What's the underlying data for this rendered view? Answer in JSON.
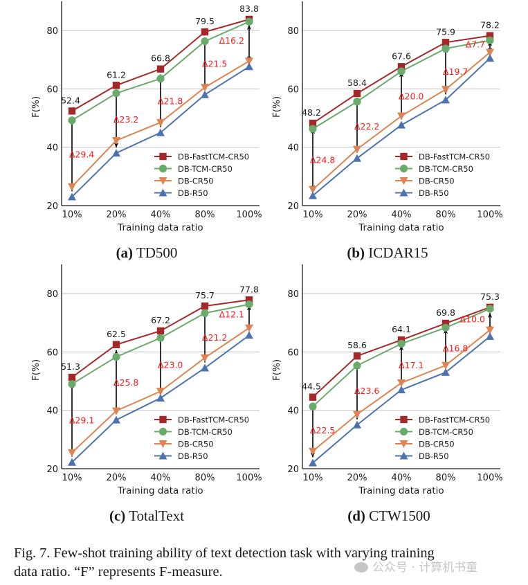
{
  "figure": {
    "caption_line1": "Fig. 7.    Few-shot training ability of text detection task with varying training",
    "caption_line2": "data ratio. “F” represents F-measure.",
    "watermark": "公众号 · 计算机书童"
  },
  "colors": {
    "DB-FastTCM-CR50": "#a3282a",
    "DB-TCM-CR50": "#6aaa6a",
    "DB-CR50": "#dd8452",
    "DB-R50": "#4c72b0",
    "delta_text": "#ff1a1a",
    "arrow": "#000000",
    "grid": "#cccccc"
  },
  "chart_data": [
    {
      "type": "line",
      "panel_label": "(a)",
      "title": "TD500",
      "xlabel": "Training data ratio",
      "ylabel": "F(%)",
      "categories": [
        "10%",
        "20%",
        "40%",
        "80%",
        "100%"
      ],
      "ylim": [
        20,
        90
      ],
      "yticks": [
        20,
        40,
        60,
        80
      ],
      "grid": "horizontal",
      "legend_position": "lower-right",
      "series": [
        {
          "name": "DB-FastTCM-CR50",
          "marker": "square",
          "values": [
            52.4,
            61.2,
            66.8,
            79.5,
            83.8
          ]
        },
        {
          "name": "DB-TCM-CR50",
          "marker": "circle",
          "values": [
            49.2,
            58.5,
            63.5,
            76.3,
            83.0
          ]
        },
        {
          "name": "DB-CR50",
          "marker": "triangle-down",
          "values": [
            26.5,
            42.3,
            48.5,
            60.5,
            69.5
          ]
        },
        {
          "name": "DB-R50",
          "marker": "triangle-up",
          "values": [
            23.0,
            38.0,
            45.0,
            58.0,
            67.6
          ]
        }
      ],
      "value_labels": [
        "52.4",
        "61.2",
        "66.8",
        "79.5",
        "83.8"
      ],
      "delta_labels": [
        "Δ29.4",
        "Δ23.2",
        "Δ21.8",
        "Δ21.5",
        "Δ16.2"
      ]
    },
    {
      "type": "line",
      "panel_label": "(b)",
      "title": "ICDAR15",
      "xlabel": "Training data ratio",
      "ylabel": "F(%)",
      "categories": [
        "10%",
        "20%",
        "40%",
        "80%",
        "100%"
      ],
      "ylim": [
        20,
        90
      ],
      "yticks": [
        20,
        40,
        60,
        80
      ],
      "grid": "horizontal",
      "legend_position": "lower-right",
      "series": [
        {
          "name": "DB-FastTCM-CR50",
          "marker": "square",
          "values": [
            48.2,
            58.4,
            67.6,
            75.9,
            78.2
          ]
        },
        {
          "name": "DB-TCM-CR50",
          "marker": "circle",
          "values": [
            46.3,
            55.6,
            66.0,
            73.8,
            76.6
          ]
        },
        {
          "name": "DB-CR50",
          "marker": "triangle-down",
          "values": [
            25.5,
            39.3,
            50.7,
            59.8,
            72.5
          ]
        },
        {
          "name": "DB-R50",
          "marker": "triangle-up",
          "values": [
            23.4,
            36.2,
            47.6,
            56.2,
            70.5
          ]
        }
      ],
      "value_labels": [
        "48.2",
        "58.4",
        "67.6",
        "75.9",
        "78.2"
      ],
      "delta_labels": [
        "Δ24.8",
        "Δ22.2",
        "Δ20.0",
        "Δ19.7",
        "Δ7.7"
      ]
    },
    {
      "type": "line",
      "panel_label": "(c)",
      "title": "TotalText",
      "xlabel": "Training data ratio",
      "ylabel": "F(%)",
      "categories": [
        "10%",
        "20%",
        "40%",
        "80%",
        "100%"
      ],
      "ylim": [
        20,
        90
      ],
      "yticks": [
        20,
        40,
        60,
        80
      ],
      "grid": "horizontal",
      "legend_position": "lower-right",
      "series": [
        {
          "name": "DB-FastTCM-CR50",
          "marker": "square",
          "values": [
            51.3,
            62.5,
            67.2,
            75.7,
            77.8
          ]
        },
        {
          "name": "DB-TCM-CR50",
          "marker": "circle",
          "values": [
            49.0,
            58.3,
            64.8,
            73.3,
            76.3
          ]
        },
        {
          "name": "DB-CR50",
          "marker": "triangle-down",
          "values": [
            25.5,
            39.8,
            46.5,
            58.0,
            68.2
          ]
        },
        {
          "name": "DB-R50",
          "marker": "triangle-up",
          "values": [
            22.2,
            36.7,
            44.2,
            54.5,
            65.7
          ]
        }
      ],
      "value_labels": [
        "51.3",
        "62.5",
        "67.2",
        "75.7",
        "77.8"
      ],
      "delta_labels": [
        "Δ29.1",
        "Δ25.8",
        "Δ23.0",
        "Δ21.2",
        "Δ12.1"
      ]
    },
    {
      "type": "line",
      "panel_label": "(d)",
      "title": "CTW1500",
      "xlabel": "Training data ratio",
      "ylabel": "F(%)",
      "categories": [
        "10%",
        "20%",
        "40%",
        "80%",
        "100%"
      ],
      "ylim": [
        20,
        90
      ],
      "yticks": [
        20,
        40,
        60,
        80
      ],
      "grid": "horizontal",
      "legend_position": "lower-right",
      "series": [
        {
          "name": "DB-FastTCM-CR50",
          "marker": "square",
          "values": [
            44.5,
            58.6,
            64.1,
            69.8,
            75.3
          ]
        },
        {
          "name": "DB-TCM-CR50",
          "marker": "circle",
          "values": [
            41.3,
            55.3,
            62.8,
            68.3,
            74.8
          ]
        },
        {
          "name": "DB-CR50",
          "marker": "triangle-down",
          "values": [
            26.0,
            38.6,
            49.4,
            55.4,
            67.5
          ]
        },
        {
          "name": "DB-R50",
          "marker": "triangle-up",
          "values": [
            22.0,
            35.0,
            47.0,
            53.0,
            65.3
          ]
        }
      ],
      "value_labels": [
        "44.5",
        "58.6",
        "64.1",
        "69.8",
        "75.3"
      ],
      "delta_labels": [
        "Δ22.5",
        "Δ23.6",
        "Δ17.1",
        "Δ16.8",
        "Δ10.0"
      ]
    }
  ]
}
